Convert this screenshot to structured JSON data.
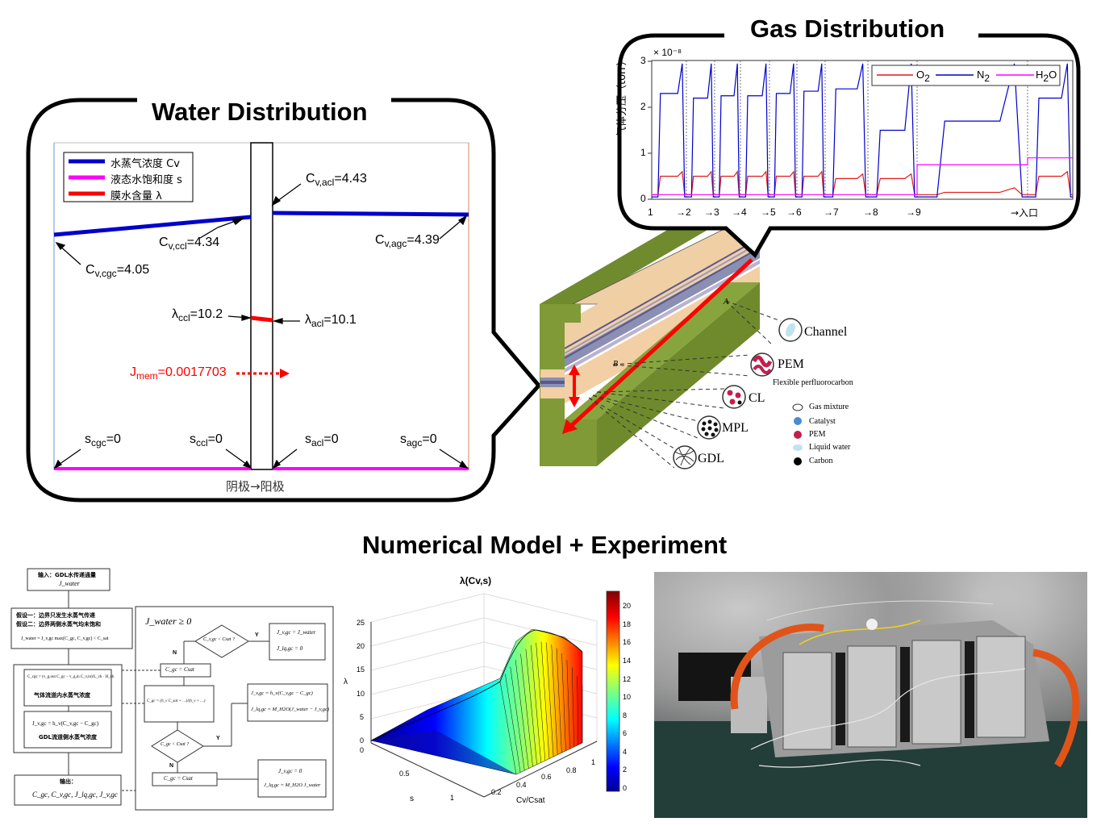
{
  "titles": {
    "water": "Water Distribution",
    "gas": "Gas Distribution",
    "bottom": "Numerical Model + Experiment"
  },
  "water": {
    "legend": [
      "水蒸气浓度 Cv",
      "液态水饱和度 s",
      "膜水含量 λ"
    ],
    "colors": {
      "cv": "#0000ff",
      "s": "#ff00ff",
      "lambda": "#ff0000"
    },
    "labels": {
      "cv_cgc": "C",
      "cv_cgc_sub": "v,cgc",
      "cv_cgc_val": "=4.05",
      "cv_ccl": "C",
      "cv_ccl_sub": "v,ccl",
      "cv_ccl_val": "=4.34",
      "cv_acl": "C",
      "cv_acl_sub": "v,acl",
      "cv_acl_val": "=4.43",
      "cv_agc": "C",
      "cv_agc_sub": "v,agc",
      "cv_agc_val": "=4.39",
      "lam_ccl": "λ",
      "lam_ccl_sub": "ccl",
      "lam_ccl_val": "=10.2",
      "lam_acl": "λ",
      "lam_acl_sub": "acl",
      "lam_acl_val": "=10.1",
      "jmem": "J",
      "jmem_sub": "mem",
      "jmem_val": "=0.0017703",
      "s_cgc": "s",
      "s_cgc_sub": "cgc",
      "s_cgc_val": "=0",
      "s_ccl": "s",
      "s_ccl_sub": "ccl",
      "s_ccl_val": "=0",
      "s_acl": "s",
      "s_acl_sub": "acl",
      "s_acl_val": "=0",
      "s_agc": "s",
      "s_agc_sub": "agc",
      "s_agc_val": "=0"
    },
    "axis_caption": "阴极→阳极"
  },
  "gas": {
    "y_exponent": "× 10⁻⁸",
    "y_label": "气体分压（torr）",
    "y_ticks": [
      "0",
      "1",
      "2",
      "3"
    ],
    "x_ticks": [
      "1",
      "→2",
      "→3",
      "→4",
      "→5",
      "→6",
      "→7",
      "→8",
      "→9",
      "→入口"
    ],
    "legend": [
      "O",
      "N",
      "H",
      "O"
    ],
    "legend_subs": [
      "2",
      "2",
      "2",
      ""
    ],
    "colors": {
      "o2": "#e41a1c",
      "n2": "#0000cc",
      "h2o": "#ff00ff"
    }
  },
  "cell": {
    "labels": [
      "Channel",
      "PEM",
      "CL",
      "MPL",
      "GDL"
    ],
    "flexible": "Flexible perfluorocarbon",
    "key": [
      "Gas mixture",
      "Catalyst",
      "PEM",
      "Liquid water",
      "Carbon"
    ],
    "mark_a": "A",
    "mark_b": "B"
  },
  "flowchart": {
    "input_line1": "输入：GDL水传递通量",
    "input_line2": "J_water",
    "assume1": "假设一：边界只发生水蒸气传递",
    "assume2": "假设二：边界两侧水蒸气均未饱和",
    "eq_jwater": "J_water = J_v,gc      max(C_gc, C_v,gc) < C_sat",
    "eq_cgc": "C_cgc = (v_g,out C_gc − v_g,in C_v,in)/L_ch · H_ch",
    "note_cgc": "气体流道内水蒸气浓度",
    "eq_jvgc": "J_v,gc = h_v(C_v,gc − C_gc)",
    "note_gdl": "GDL流道侧水蒸气浓度",
    "output_title": "输出：",
    "output_vals": "C_gc, C_v,gc, J_lq,gc, J_v,gc",
    "cond_main": "J_water ≥ 0",
    "dec1": "C_v,gc < Csat ?",
    "dec2": "C_gc < Csat ?",
    "box_a1": "J_v,gc = J_water",
    "box_a2": "J_lq,gc = 0",
    "box_csat1": "C_gc = Csat",
    "box_cgc": "C_gc = (h_v C_sat + …)/(h_v + …)",
    "box_b1": "J_v,gc = h_v(C_v,gc − C_gc)",
    "box_b2": "J_lq,gc = M_H2O(J_water − J_v,gc)",
    "box_csat2": "C_gc = Csat",
    "box_c1": "J_v,gc = 0",
    "box_c2": "J_lq,gc = M_H2O J_water",
    "yes": "Y",
    "no": "N"
  },
  "surface": {
    "title": "λ(Cv,s)",
    "z_ticks": [
      "0",
      "5",
      "10",
      "15",
      "20",
      "25"
    ],
    "x_ticks": [
      "0.2",
      "0.4",
      "0.6",
      "0.8",
      "1"
    ],
    "y_ticks": [
      "0",
      "0.5",
      "1"
    ],
    "xlabel": "Cv/Csat",
    "ylabel": "s",
    "zlabel": "λ",
    "cbar_ticks": [
      "0",
      "2",
      "4",
      "6",
      "8",
      "10",
      "12",
      "14",
      "16",
      "18",
      "20"
    ]
  },
  "chart_data": [
    {
      "type": "line",
      "title": "Gas Distribution",
      "ylabel": "气体分压（torr）",
      "ylim": [
        0,
        3e-08
      ],
      "categories": [
        "1",
        "→2",
        "→3",
        "→4",
        "→5",
        "→6",
        "→7",
        "→8",
        "→9",
        "→入口"
      ],
      "series": [
        {
          "name": "O2",
          "values": [
            5e-09,
            5e-09,
            5e-09,
            5e-09,
            5e-09,
            5e-09,
            4.5e-09,
            4.5e-09,
            1.5e-09,
            5e-09
          ]
        },
        {
          "name": "N2",
          "values": [
            2.3e-08,
            2.2e-08,
            2.25e-08,
            2.25e-08,
            2.3e-08,
            2.35e-08,
            2.4e-08,
            1.5e-08,
            1.7e-08,
            2.2e-08
          ]
        },
        {
          "name": "H2O",
          "values": [
            1e-09,
            1e-09,
            1e-09,
            1e-09,
            1e-09,
            1e-09,
            1e-09,
            1e-09,
            7.5e-09,
            9e-09
          ]
        }
      ],
      "legend": "top-right"
    },
    {
      "type": "surface",
      "title": "λ(Cv,s)",
      "xlabel": "Cv/Csat",
      "ylabel": "s",
      "zlabel": "λ",
      "zlim": [
        0,
        25
      ],
      "colorbar_range": [
        0,
        21
      ]
    }
  ]
}
